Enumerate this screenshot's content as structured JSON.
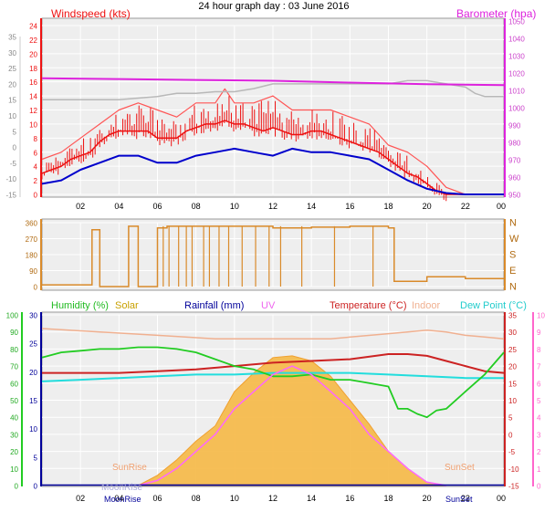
{
  "title": "24 hour graph day : 03 June 2016",
  "colors": {
    "wind": "#ee1111",
    "gust_band": "#ff5555",
    "avg_wind": "#0000cc",
    "baro": "#dd22dd",
    "baro_axis": "#cc44cc",
    "grey_series": "#b8b8b8",
    "dir": "#d98a2a",
    "dir_text": "#b06a10",
    "humidity": "#22cc22",
    "solar": "#f5b845",
    "rain": "#000099",
    "uv": "#ff66ff",
    "temperature": "#cc2222",
    "indoor": "#f0b090",
    "dewpoint": "#22dddd",
    "plot_bg": "#eeeeee",
    "grid": "#ffffff",
    "sunrise_text": "#f0a070",
    "moonrise_text": "#aaaadd"
  },
  "x_ticks": [
    "02",
    "04",
    "06",
    "08",
    "10",
    "12",
    "14",
    "16",
    "18",
    "20",
    "22",
    "00"
  ],
  "top": {
    "left_title": "Windspeed (kts)",
    "right_title": "Barometer (hpa)",
    "left_ticks": [
      "24",
      "22",
      "20",
      "18",
      "16",
      "14",
      "12",
      "10",
      "8",
      "6",
      "4",
      "2",
      "0"
    ],
    "far_left_ticks": [
      "35",
      "30",
      "25",
      "20",
      "15",
      "10",
      "5",
      "0",
      "-5",
      "-10",
      "-15"
    ],
    "right_ticks": [
      "1050",
      "1040",
      "1030",
      "1020",
      "1010",
      "1000",
      "990",
      "980",
      "970",
      "960",
      "950"
    ]
  },
  "direction": {
    "left_ticks": [
      "360",
      "270",
      "180",
      "90",
      "0"
    ],
    "right_ticks": [
      "N",
      "W",
      "S",
      "E",
      "N"
    ]
  },
  "bottom": {
    "legend": {
      "humidity": "Humidity (%)",
      "solar": "Solar",
      "rain": "Rainfall (mm)",
      "uv": "UV",
      "temperature": "Temperature (°C)",
      "indoor": "Indoor",
      "dewpoint": "Dew Point (°C)"
    },
    "humidity_ticks": [
      "100",
      "90",
      "80",
      "70",
      "60",
      "50",
      "40",
      "30",
      "20",
      "10",
      "0"
    ],
    "rain_ticks": [
      "30",
      "25",
      "20",
      "15",
      "10",
      "5",
      "0"
    ],
    "temp_ticks": [
      "35",
      "30",
      "25",
      "20",
      "15",
      "10",
      "5",
      "0",
      "-5",
      "-10",
      "-15"
    ],
    "uv_ticks": [
      "10",
      "9",
      "8",
      "7",
      "6",
      "5",
      "4",
      "3",
      "2",
      "1",
      "0"
    ],
    "annotations": {
      "sunrise": "SunRise",
      "sunset": "SunSet",
      "moonrise": "MoonRise",
      "moonrise_axis": "MoonRise",
      "sunset_axis": "SunSet"
    }
  },
  "chart_data": [
    {
      "type": "line",
      "panel": "wind-barometer",
      "x_unit": "hour of day (0-24)",
      "ylim_wind": [
        0,
        25
      ],
      "ylim_baro": [
        950,
        1050
      ],
      "series": [
        {
          "name": "Windspeed (kts)",
          "x": [
            0,
            0.5,
            1,
            1.5,
            2,
            2.5,
            3,
            3.5,
            4,
            4.5,
            5,
            5.5,
            6,
            6.5,
            7,
            7.5,
            8,
            8.5,
            9,
            9.5,
            10,
            10.5,
            11,
            11.5,
            12,
            12.5,
            13,
            13.5,
            14,
            14.5,
            15,
            15.5,
            16,
            16.5,
            17,
            17.5,
            18,
            18.5,
            19,
            19.5,
            20,
            20.5,
            21,
            21.5,
            22,
            22.5,
            23,
            23.5,
            24
          ],
          "values": [
            3,
            3.5,
            4,
            5,
            5.5,
            6,
            7.5,
            8.5,
            9,
            9,
            9,
            9,
            8,
            8,
            8,
            9,
            9.5,
            10,
            10,
            10.5,
            10,
            10,
            9.5,
            9,
            9.5,
            9,
            8.5,
            8.5,
            9,
            9,
            8.5,
            8,
            7.5,
            7,
            6.5,
            6,
            5,
            4,
            3,
            2.5,
            1.5,
            0.5,
            0,
            0,
            0,
            0,
            0,
            0,
            0
          ]
        },
        {
          "name": "Wind gust (kts)",
          "x": [
            0,
            1,
            2,
            3,
            4,
            5,
            6,
            7,
            8,
            9,
            9.5,
            10,
            11,
            12,
            13,
            14,
            15,
            16,
            17,
            18,
            19,
            20,
            21,
            22,
            23,
            24
          ],
          "values": [
            5,
            6,
            8,
            10,
            12,
            13,
            12,
            11,
            13,
            13,
            15,
            13,
            13,
            14,
            12,
            12,
            12,
            11,
            10,
            7,
            6,
            4,
            1,
            0,
            0,
            0
          ]
        },
        {
          "name": "Average wind (kts)",
          "x": [
            0,
            1,
            2,
            3,
            4,
            5,
            6,
            7,
            8,
            9,
            10,
            11,
            12,
            13,
            14,
            15,
            16,
            17,
            18,
            19,
            20,
            21,
            22,
            23,
            24
          ],
          "values": [
            1.5,
            2,
            3.5,
            4.5,
            5.5,
            5.5,
            4.5,
            4.5,
            5.5,
            6,
            6.5,
            6,
            5.5,
            6.5,
            6,
            6,
            5.5,
            5,
            3.5,
            2,
            0.8,
            0.2,
            0,
            0,
            0
          ]
        },
        {
          "name": "Barometer (hpa)",
          "x": [
            0,
            4,
            8,
            12,
            16,
            20,
            24
          ],
          "values": [
            1017,
            1016.5,
            1016,
            1015.5,
            1014.5,
            1013.5,
            1013
          ]
        },
        {
          "name": "Left scale series",
          "x": [
            0,
            2,
            4,
            6,
            7,
            8,
            9,
            10,
            11,
            12,
            13,
            14,
            15,
            16,
            17,
            18,
            19,
            20,
            21,
            22,
            22.5,
            23,
            24
          ],
          "values": [
            15,
            15,
            15,
            16,
            17,
            17,
            17.5,
            17.5,
            18.5,
            20,
            20,
            20,
            20,
            20,
            20,
            20,
            21,
            21,
            20,
            19,
            17,
            16,
            16
          ]
        }
      ]
    },
    {
      "type": "line",
      "panel": "wind-direction",
      "x_unit": "hour of day (0-24)",
      "ylim": [
        0,
        360
      ],
      "series": [
        {
          "name": "Wind direction (deg)",
          "x": [
            0,
            1,
            2,
            2.6,
            3,
            4,
            4.5,
            5,
            6,
            6.5,
            8,
            12,
            14,
            16,
            17,
            18,
            18.3,
            20,
            22,
            24
          ],
          "values": [
            10,
            10,
            10,
            320,
            0,
            0,
            340,
            0,
            330,
            340,
            340,
            330,
            335,
            340,
            340,
            330,
            30,
            55,
            45,
            45
          ]
        }
      ]
    },
    {
      "type": "area",
      "panel": "humidity-temperature-solar",
      "x_unit": "hour of day (0-24)",
      "ylim_humidity": [
        0,
        100
      ],
      "ylim_temp": [
        -15,
        35
      ],
      "ylim_uv": [
        0,
        10
      ],
      "series": [
        {
          "name": "Humidity (%)",
          "x": [
            0,
            1,
            2,
            3,
            4,
            5,
            6,
            7,
            8,
            9,
            10,
            11,
            12,
            13,
            14,
            15,
            16,
            17,
            18,
            18.5,
            19,
            19.5,
            20,
            20.5,
            21,
            22,
            23,
            24
          ],
          "values": [
            75,
            78,
            79,
            80,
            80,
            81,
            81,
            80,
            78,
            74,
            70,
            68,
            64,
            64,
            65,
            62,
            62,
            60,
            58,
            45,
            45,
            42,
            40,
            44,
            45,
            55,
            65,
            78
          ]
        },
        {
          "name": "Temperature (°C)",
          "x": [
            0,
            2,
            4,
            6,
            8,
            10,
            12,
            14,
            16,
            18,
            19,
            20,
            21,
            22,
            23,
            24
          ],
          "values": [
            18,
            18,
            18,
            18.5,
            19,
            20,
            21,
            21.5,
            22,
            23.5,
            23.5,
            23,
            21.5,
            20,
            18.5,
            18
          ]
        },
        {
          "name": "Dew Point (°C)",
          "x": [
            0,
            2,
            4,
            6,
            8,
            10,
            12,
            14,
            16,
            18,
            20,
            22,
            24
          ],
          "values": [
            15.5,
            16,
            16.5,
            17,
            17.5,
            17.5,
            18,
            18,
            18,
            17.5,
            17,
            16.5,
            16.5
          ]
        },
        {
          "name": "Indoor (°C)",
          "x": [
            0,
            3,
            6,
            9,
            12,
            15,
            18,
            19,
            20,
            21,
            22,
            23,
            24
          ],
          "values": [
            31,
            30,
            29,
            28,
            28,
            28,
            29.5,
            30,
            30.5,
            30,
            29,
            28.5,
            28
          ]
        },
        {
          "name": "Solar",
          "x": [
            5,
            6,
            7,
            8,
            9,
            10,
            11,
            12,
            13,
            14,
            15,
            16,
            17,
            18,
            19,
            20,
            21
          ],
          "values": [
            0,
            6,
            15,
            26,
            35,
            55,
            66,
            75,
            76,
            73,
            64,
            50,
            36,
            20,
            10,
            2,
            0
          ]
        },
        {
          "name": "UV",
          "x": [
            5,
            6,
            7,
            8,
            9,
            10,
            11,
            12,
            13,
            14,
            15,
            16,
            17,
            18,
            19,
            20,
            21
          ],
          "values": [
            0,
            0.3,
            1,
            2,
            3,
            4.5,
            5.5,
            6.5,
            7,
            6.5,
            5.5,
            4.5,
            3,
            2,
            1,
            0.2,
            0
          ]
        }
      ]
    }
  ]
}
